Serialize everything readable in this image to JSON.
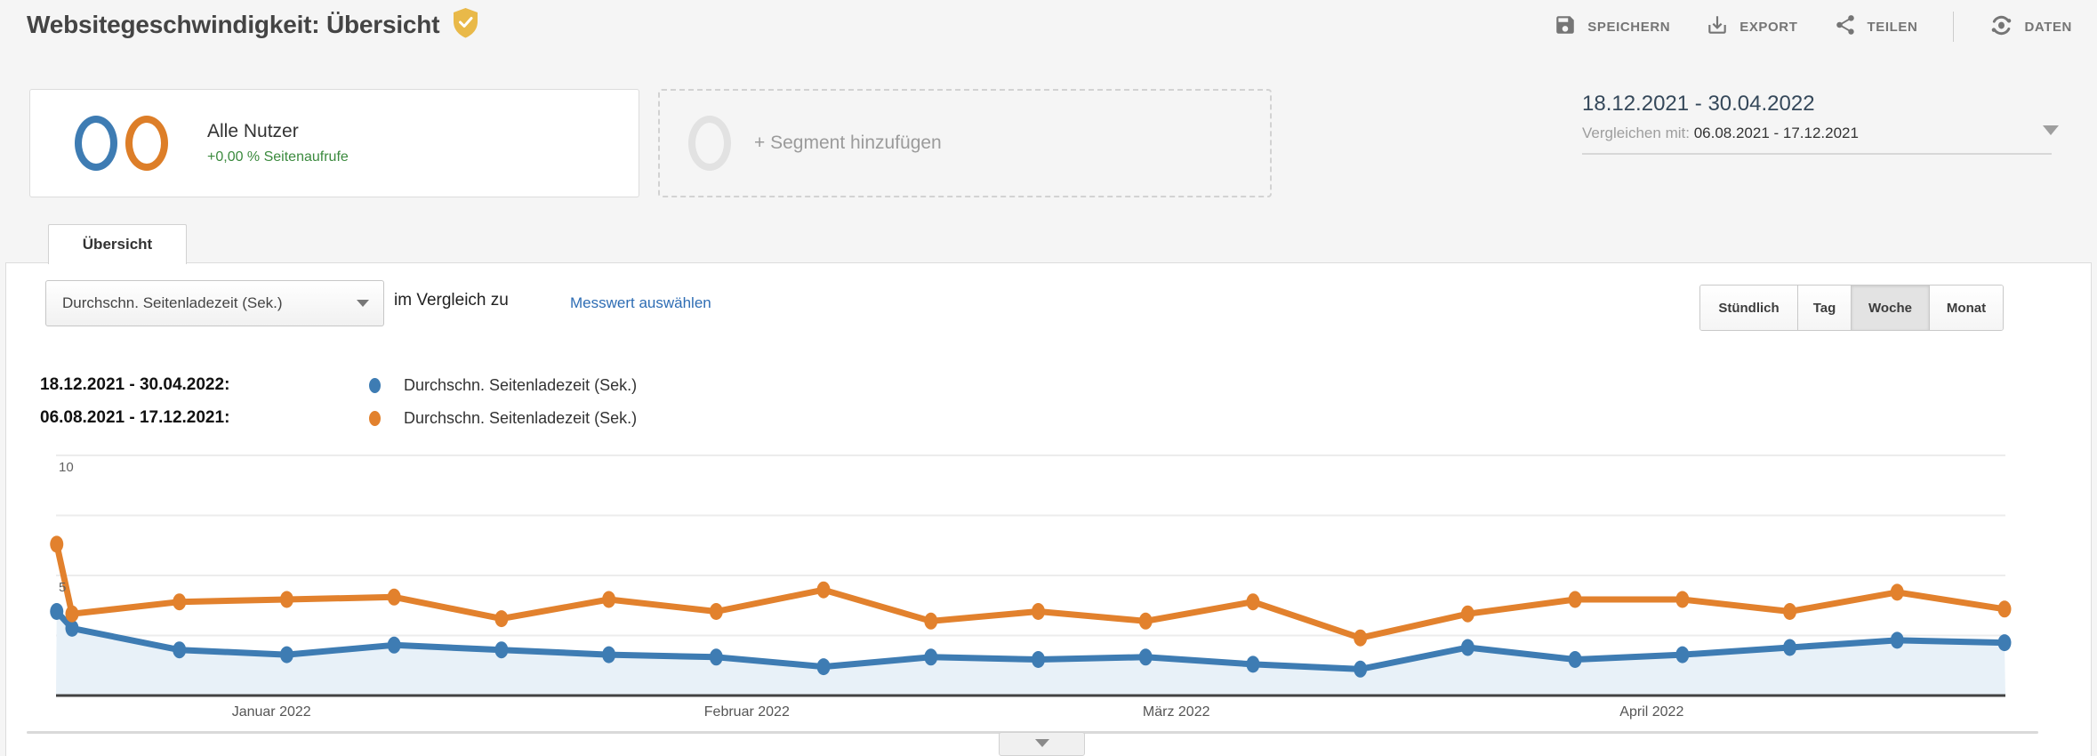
{
  "header": {
    "title": "Websitegeschwindigkeit: Übersicht",
    "badge_icon": "shield-check-icon",
    "actions": [
      {
        "label": "SPEICHERN",
        "icon": "save-icon"
      },
      {
        "label": "EXPORT",
        "icon": "download-icon"
      },
      {
        "label": "TEILEN",
        "icon": "share-icon"
      },
      {
        "label": "DATEN",
        "icon": "insights-icon"
      }
    ]
  },
  "segments": {
    "all_users": {
      "title": "Alle Nutzer",
      "delta": "+0,00 % Seitenaufrufe"
    },
    "add_segment": {
      "label": "+ Segment hinzufügen"
    }
  },
  "date_range": {
    "primary": "18.12.2021 - 30.04.2022",
    "compare_prefix": "Vergleichen mit:",
    "compare": "06.08.2021 - 17.12.2021"
  },
  "tabs": [
    {
      "label": "Übersicht",
      "active": true
    }
  ],
  "metric_bar": {
    "metric_select": "Durchschn. Seitenladezeit (Sek.)",
    "compare_text": "im Vergleich zu",
    "select_metric_link": "Messwert auswählen",
    "granularity": [
      {
        "label": "Stündlich",
        "active": false
      },
      {
        "label": "Tag",
        "active": false
      },
      {
        "label": "Woche",
        "active": true
      },
      {
        "label": "Monat",
        "active": false
      }
    ]
  },
  "legend": [
    {
      "date_range": "18.12.2021 - 30.04.2022:",
      "color": "#3e7cb3",
      "label": "Durchschn. Seitenladezeit (Sek.)"
    },
    {
      "date_range": "06.08.2021 - 17.12.2021:",
      "color": "#e2812d",
      "label": "Durchschn. Seitenladezeit (Sek.)"
    }
  ],
  "chart_data": {
    "type": "line",
    "x_unit": "week",
    "ylim": [
      0,
      10
    ],
    "grid": true,
    "y_ticks": [
      {
        "label": "10",
        "value": 10
      },
      {
        "label": "5",
        "value": 5
      }
    ],
    "y_gridlines": [
      10,
      7.5,
      5,
      2.5
    ],
    "x_month_labels": [
      {
        "label": "Januar 2022",
        "day": 14
      },
      {
        "label": "Februar 2022",
        "day": 45
      },
      {
        "label": "März 2022",
        "day": 73
      },
      {
        "label": "April 2022",
        "day": 104
      }
    ],
    "day_offsets": [
      0,
      1,
      8,
      15,
      22,
      29,
      36,
      43,
      50,
      57,
      64,
      71,
      78,
      85,
      92,
      99,
      106,
      113,
      120,
      127
    ],
    "series": [
      {
        "name": "Durchschn. Seitenladezeit (Sek.)",
        "period": "18.12.2021 - 30.04.2022",
        "color": "#3e7cb3",
        "area": true,
        "area_color": "#e8f1f8",
        "values": [
          3.5,
          2.8,
          1.9,
          1.7,
          2.1,
          1.9,
          1.7,
          1.6,
          1.2,
          1.6,
          1.5,
          1.6,
          1.3,
          1.1,
          2.0,
          1.5,
          1.7,
          2.0,
          2.3,
          2.2
        ]
      },
      {
        "name": "Durchschn. Seitenladezeit (Sek.)",
        "period": "06.08.2021 - 17.12.2021",
        "color": "#e2812d",
        "area": false,
        "values": [
          6.3,
          3.4,
          3.9,
          4.0,
          4.1,
          3.2,
          4.0,
          3.5,
          4.4,
          3.1,
          3.5,
          3.1,
          3.9,
          2.4,
          3.4,
          4.0,
          4.0,
          3.5,
          4.3,
          3.6
        ]
      }
    ],
    "legend_position": "top-left",
    "axis_color": "#424242",
    "gridline_color": "#ececec"
  },
  "colors": {
    "page_bg": "#f5f5f5",
    "card_bg": "#ffffff",
    "series_blue": "#3e7cb3",
    "series_orange": "#e2812d",
    "delta_green": "#3b8a3e",
    "link_blue": "#2e6db4",
    "toolbar_gray": "#757575",
    "badge_gold": "#e9b949"
  }
}
